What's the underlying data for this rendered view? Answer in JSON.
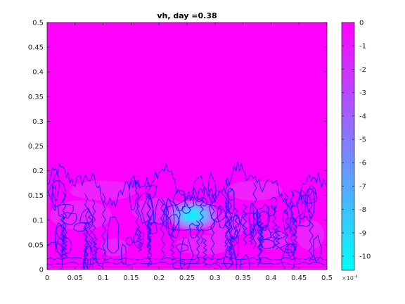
{
  "chart_data": {
    "type": "heatmap",
    "title": "vh, day =0.38",
    "xlabel": "",
    "ylabel": "",
    "x_ticks": [
      "0",
      "0.05",
      "0.1",
      "0.15",
      "0.2",
      "0.25",
      "0.3",
      "0.35",
      "0.4",
      "0.45",
      "0.5"
    ],
    "y_ticks": [
      "0",
      "0.05",
      "0.1",
      "0.15",
      "0.2",
      "0.25",
      "0.3",
      "0.35",
      "0.4",
      "0.45",
      "0.5"
    ],
    "xlim": [
      0,
      0.5
    ],
    "ylim": [
      0,
      0.5
    ],
    "colormap": "cool",
    "colorbar": {
      "ticks": [
        "0",
        "-1",
        "-2",
        "-3",
        "-4",
        "-5",
        "-6",
        "-7",
        "-8",
        "-9",
        "-10"
      ],
      "exponent_label": "×10",
      "exponent_power": "-4",
      "clim": [
        -10.6,
        0
      ],
      "color_max": "#ff00ff",
      "color_min": "#00ffff"
    },
    "contour_color": "#1a1aff",
    "field_description_values": {
      "background_value": 0,
      "peak_min_value": -10.6,
      "peak_location": [
        0.26,
        0.11
      ],
      "active_region_ymax": 0.2
    }
  }
}
